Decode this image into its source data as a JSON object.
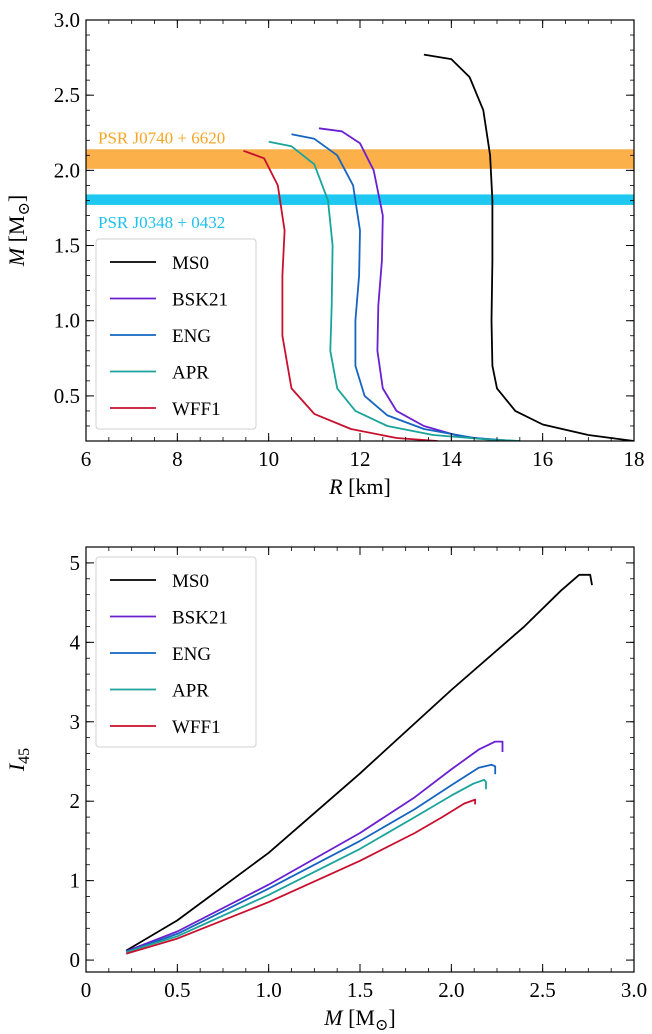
{
  "chart_data": [
    {
      "type": "line",
      "title": "",
      "xlabel": {
        "var": "R",
        "unit": " [km]"
      },
      "ylabel": {
        "var": "M",
        "unit_open": " [M",
        "unit_sub": "⊙",
        "unit_close": "]"
      },
      "xlim": [
        6,
        18
      ],
      "ylim": [
        0.2,
        3.0
      ],
      "xticks": [
        6,
        8,
        10,
        12,
        14,
        16,
        18
      ],
      "xtick_labels": [
        "6",
        "8",
        "10",
        "12",
        "14",
        "16",
        "18"
      ],
      "yticks": [
        0.5,
        1.0,
        1.5,
        2.0,
        2.5,
        3.0
      ],
      "ytick_labels": [
        "0.5",
        "1.0",
        "1.5",
        "2.0",
        "2.5",
        "3.0"
      ],
      "grid": false,
      "legend": "lower-left",
      "bands": [
        {
          "label": "PSR J0740 + 6620",
          "y_range": [
            2.01,
            2.14
          ],
          "color": "#fbb04a",
          "label_color": "#f5a623"
        },
        {
          "label": "PSR J0348 + 0432",
          "y_range": [
            1.77,
            1.84
          ],
          "color": "#1ec8f0",
          "label_color": "#1ec0ec"
        }
      ],
      "series": [
        {
          "name": "MS0",
          "color": "#000000",
          "x": [
            13.4,
            14.0,
            14.4,
            14.7,
            14.85,
            14.9,
            14.9,
            14.88,
            14.9,
            15.0,
            15.4,
            16.0,
            17.0,
            18.0
          ],
          "y": [
            2.77,
            2.74,
            2.62,
            2.4,
            2.1,
            1.8,
            1.4,
            1.0,
            0.7,
            0.55,
            0.4,
            0.31,
            0.24,
            0.2
          ]
        },
        {
          "name": "BSK21",
          "color": "#6a1fd1",
          "x": [
            11.1,
            11.6,
            12.0,
            12.3,
            12.5,
            12.48,
            12.4,
            12.38,
            12.5,
            12.8,
            13.4,
            14.2,
            15.2
          ],
          "y": [
            2.28,
            2.26,
            2.18,
            2.0,
            1.7,
            1.4,
            1.1,
            0.8,
            0.55,
            0.4,
            0.3,
            0.23,
            0.2
          ]
        },
        {
          "name": "ENG",
          "color": "#1565c0",
          "x": [
            10.5,
            11.0,
            11.5,
            11.85,
            12.0,
            11.98,
            11.9,
            11.9,
            12.1,
            12.6,
            13.4,
            14.5,
            15.4
          ],
          "y": [
            2.24,
            2.21,
            2.1,
            1.9,
            1.6,
            1.3,
            1.0,
            0.7,
            0.5,
            0.37,
            0.28,
            0.22,
            0.2
          ]
        },
        {
          "name": "APR",
          "color": "#1aa39a",
          "x": [
            10.0,
            10.5,
            11.0,
            11.3,
            11.4,
            11.38,
            11.35,
            11.5,
            11.9,
            12.6,
            13.6,
            14.8,
            15.5
          ],
          "y": [
            2.19,
            2.16,
            2.04,
            1.8,
            1.5,
            1.1,
            0.8,
            0.55,
            0.4,
            0.3,
            0.24,
            0.21,
            0.2
          ]
        },
        {
          "name": "WFF1",
          "color": "#c8102e",
          "x": [
            9.45,
            9.9,
            10.2,
            10.35,
            10.3,
            10.3,
            10.5,
            11.0,
            11.8,
            12.8,
            13.7
          ],
          "y": [
            2.13,
            2.08,
            1.9,
            1.6,
            1.3,
            0.9,
            0.55,
            0.38,
            0.28,
            0.22,
            0.2
          ]
        }
      ]
    },
    {
      "type": "line",
      "title": "",
      "xlabel": {
        "var": "M",
        "unit_open": " [M",
        "unit_sub": "⊙",
        "unit_close": "]"
      },
      "ylabel": {
        "var": "I",
        "sub": "45"
      },
      "xlim": [
        0,
        3.0
      ],
      "ylim": [
        -0.15,
        5.2
      ],
      "xticks": [
        0,
        0.5,
        1.0,
        1.5,
        2.0,
        2.5,
        3.0
      ],
      "xtick_labels": [
        "0",
        "0.5",
        "1.0",
        "1.5",
        "2.0",
        "2.5",
        "3.0"
      ],
      "yticks": [
        0,
        1,
        2,
        3,
        4,
        5
      ],
      "ytick_labels": [
        "0",
        "1",
        "2",
        "3",
        "4",
        "5"
      ],
      "grid": false,
      "legend": "upper-left",
      "series": [
        {
          "name": "MS0",
          "color": "#000000",
          "x": [
            0.22,
            0.5,
            1.0,
            1.5,
            2.0,
            2.4,
            2.6,
            2.7,
            2.76,
            2.77
          ],
          "y": [
            0.12,
            0.5,
            1.35,
            2.35,
            3.4,
            4.2,
            4.65,
            4.85,
            4.85,
            4.72
          ]
        },
        {
          "name": "BSK21",
          "color": "#6a1fd1",
          "x": [
            0.22,
            0.5,
            1.0,
            1.5,
            1.8,
            2.0,
            2.15,
            2.24,
            2.28,
            2.28
          ],
          "y": [
            0.11,
            0.36,
            0.95,
            1.6,
            2.05,
            2.4,
            2.65,
            2.75,
            2.75,
            2.62
          ]
        },
        {
          "name": "ENG",
          "color": "#1565c0",
          "x": [
            0.22,
            0.5,
            1.0,
            1.5,
            1.8,
            2.0,
            2.15,
            2.22,
            2.24,
            2.24
          ],
          "y": [
            0.1,
            0.33,
            0.9,
            1.5,
            1.9,
            2.2,
            2.42,
            2.46,
            2.44,
            2.34
          ]
        },
        {
          "name": "APR",
          "color": "#1aa39a",
          "x": [
            0.22,
            0.5,
            1.0,
            1.5,
            1.8,
            2.0,
            2.12,
            2.18,
            2.19,
            2.19
          ],
          "y": [
            0.1,
            0.3,
            0.82,
            1.4,
            1.8,
            2.07,
            2.22,
            2.27,
            2.24,
            2.15
          ]
        },
        {
          "name": "WFF1",
          "color": "#c8102e",
          "x": [
            0.22,
            0.5,
            1.0,
            1.5,
            1.8,
            1.95,
            2.07,
            2.13,
            2.13
          ],
          "y": [
            0.08,
            0.27,
            0.73,
            1.25,
            1.6,
            1.8,
            1.97,
            2.02,
            1.96
          ]
        }
      ]
    }
  ]
}
